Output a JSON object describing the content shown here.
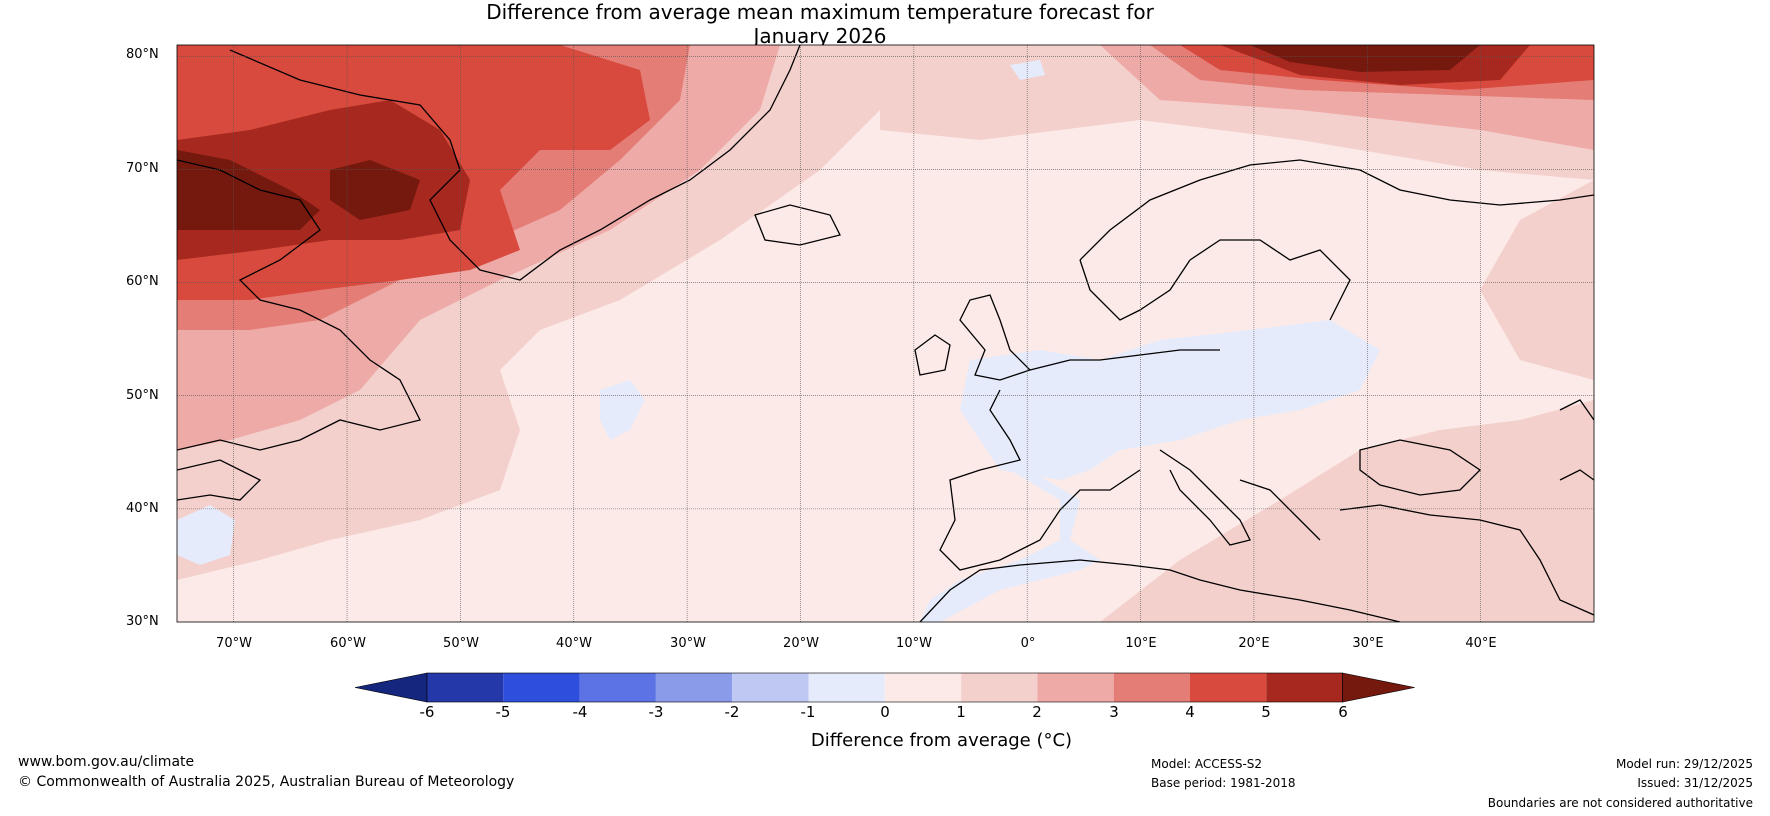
{
  "title": {
    "line1": "Difference from average mean maximum temperature forecast for",
    "line2": "January 2026"
  },
  "map": {
    "latitude_labels": [
      "80°N",
      "70°N",
      "60°N",
      "50°N",
      "40°N",
      "30°N"
    ],
    "longitude_labels": [
      "70°W",
      "60°W",
      "50°W",
      "40°W",
      "30°W",
      "20°W",
      "10°W",
      "0°",
      "10°E",
      "20°E",
      "30°E",
      "40°E"
    ],
    "extent": {
      "lon": [
        -75,
        50
      ],
      "lat": [
        30,
        81
      ]
    }
  },
  "colorbar": {
    "ticks": [
      "-6",
      "-5",
      "-4",
      "-3",
      "-2",
      "-1",
      "0",
      "1",
      "2",
      "3",
      "4",
      "5",
      "6"
    ],
    "colors": [
      "#2438aa",
      "#2e4fdc",
      "#5c73e6",
      "#8a9be9",
      "#bfc8f2",
      "#e6ebfb",
      "#fbeae8",
      "#f4d0cd",
      "#eeaaa7",
      "#e57d77",
      "#d84a3e",
      "#a7281e"
    ],
    "under_color": "#15267e",
    "over_color": "#75190f",
    "label": "Difference from average (°C)"
  },
  "footer": {
    "website": "www.bom.gov.au/climate",
    "copyright": "© Commonwealth of Australia 2025, Australian Bureau of Meteorology",
    "model": "Model: ACCESS-S2",
    "base_period": "Base period: 1981-2018",
    "model_run": "Model run: 29/12/2025",
    "issued": "Issued: 31/12/2025",
    "disclaimer": "Boundaries are not considered authoritative"
  }
}
